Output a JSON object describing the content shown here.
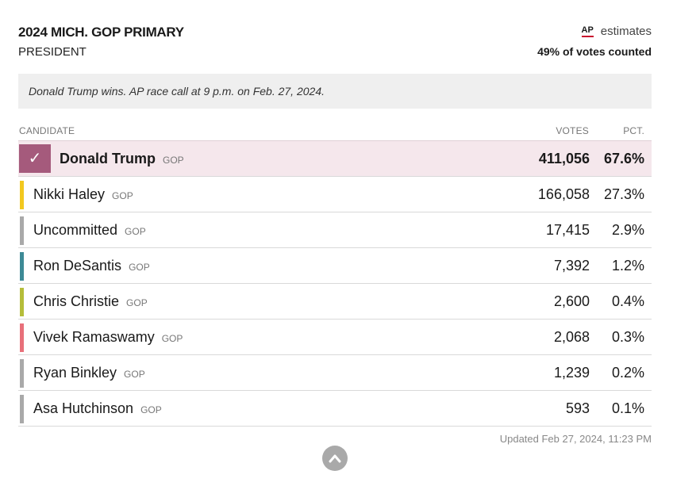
{
  "header": {
    "title": "2024 MICH. GOP PRIMARY",
    "subtitle": "PRESIDENT",
    "ap_logo": "AP",
    "estimates_label": "estimates",
    "votes_counted": "49% of votes counted"
  },
  "race_call": "Donald Trump wins. AP race call at 9 p.m. on Feb. 27, 2024.",
  "columns": {
    "candidate": "CANDIDATE",
    "votes": "VOTES",
    "pct": "PCT."
  },
  "chart_data": {
    "type": "table",
    "columns": [
      "CANDIDATE",
      "VOTES",
      "PCT."
    ],
    "rows": [
      {
        "name": "Donald Trump",
        "party": "GOP",
        "votes": "411,056",
        "pct": "67.6%",
        "winner": true,
        "color": "#a55a7c"
      },
      {
        "name": "Nikki Haley",
        "party": "GOP",
        "votes": "166,058",
        "pct": "27.3%",
        "winner": false,
        "color": "#f2c81f"
      },
      {
        "name": "Uncommitted",
        "party": "GOP",
        "votes": "17,415",
        "pct": "2.9%",
        "winner": false,
        "color": "#a9a9a9"
      },
      {
        "name": "Ron DeSantis",
        "party": "GOP",
        "votes": "7,392",
        "pct": "1.2%",
        "winner": false,
        "color": "#3d8a96"
      },
      {
        "name": "Chris Christie",
        "party": "GOP",
        "votes": "2,600",
        "pct": "0.4%",
        "winner": false,
        "color": "#b5bd3a"
      },
      {
        "name": "Vivek Ramaswamy",
        "party": "GOP",
        "votes": "2,068",
        "pct": "0.3%",
        "winner": false,
        "color": "#e8707a"
      },
      {
        "name": "Ryan Binkley",
        "party": "GOP",
        "votes": "1,239",
        "pct": "0.2%",
        "winner": false,
        "color": "#a9a9a9"
      },
      {
        "name": "Asa Hutchinson",
        "party": "GOP",
        "votes": "593",
        "pct": "0.1%",
        "winner": false,
        "color": "#a9a9a9"
      }
    ]
  },
  "footer": {
    "updated": "Updated Feb 27, 2024, 11:23 PM",
    "check_mark": "✓",
    "scroll_icon": "chevron-up-icon"
  }
}
